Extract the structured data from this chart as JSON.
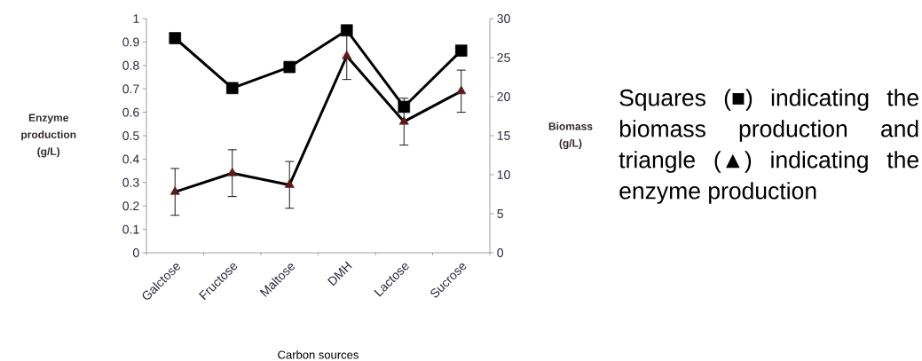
{
  "chart_data": {
    "type": "line",
    "xlabel": "Carbon sources",
    "ylabel": "Enzyme production (g/L)",
    "y2label": "Biomass (g/L)",
    "annotations": [
      "Squares (■) indicating the biomass production and triangle (▲) indicating the enzyme production"
    ],
    "categories": [
      "Galctose",
      "Fructose",
      "Maltose",
      "DMH",
      "Lactose",
      "Sucrose"
    ],
    "series": [
      {
        "color": "#5c1a1a",
        "marker": "triangle",
        "values": [
          0.26,
          0.34,
          0.29,
          0.84,
          0.56,
          0.69
        ],
        "errors": [
          0.1,
          0.1,
          0.1,
          0.1,
          0.1,
          0.09
        ]
      },
      {
        "color": "#000000",
        "marker": "square",
        "axis": "y2",
        "values": [
          27.5,
          21.1,
          23.8,
          28.5,
          18.7,
          25.9
        ]
      }
    ],
    "ylim": [
      0,
      1
    ],
    "yticks": [
      0,
      0.1,
      0.2,
      0.3,
      0.4,
      0.5,
      0.6,
      0.7,
      0.8,
      0.9,
      1
    ],
    "y2lim": [
      0,
      30
    ],
    "y2ticks": [
      0,
      5,
      10,
      15,
      20,
      25,
      30
    ],
    "line_style": "solid"
  }
}
